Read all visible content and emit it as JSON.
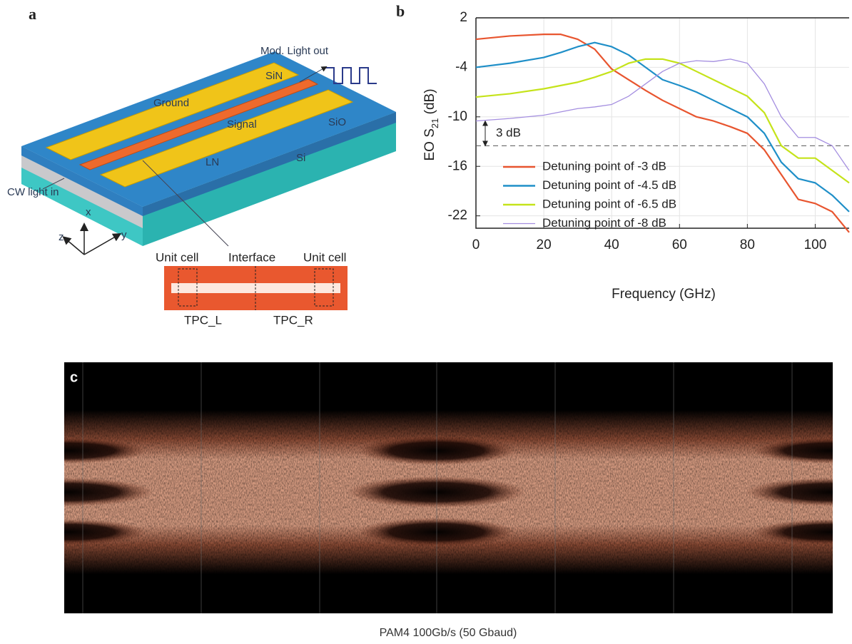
{
  "panel_a": {
    "label": "a",
    "mod_light_out": "Mod. Light out",
    "sin": "SiN",
    "ground": "Ground",
    "signal": "Signal",
    "sio": "SiO",
    "ln": "LN",
    "si": "Si",
    "cw_light_in": "CW light in",
    "axes": [
      "z",
      "x",
      "y"
    ],
    "inset": {
      "unit_cell_left": "Unit cell",
      "interface": "Interface",
      "unit_cell_right": "Unit cell",
      "tpc_l": "TPC_L",
      "tpc_r": "TPC_R"
    }
  },
  "chart_data": {
    "type": "line",
    "panel_label": "b",
    "xlabel": "Frequency (GHz)",
    "ylabel": {
      "main": "EO S",
      "sub": "21",
      "unit": " (dB)"
    },
    "x": [
      0,
      10,
      20,
      25,
      30,
      35,
      40,
      45,
      50,
      55,
      60,
      65,
      70,
      75,
      80,
      85,
      90,
      95,
      100,
      105,
      110
    ],
    "series": [
      {
        "name": "Detuning point of -3 dB",
        "color": "#e8552f",
        "values": [
          -0.6,
          -0.2,
          0,
          0,
          -0.6,
          -1.8,
          -4.2,
          -5.5,
          -6.8,
          -8,
          -9,
          -10,
          -10.5,
          -11.2,
          -12,
          -14,
          -17,
          -20,
          -20.5,
          -21.5,
          -24
        ]
      },
      {
        "name": "Detuning point of -4.5 dB",
        "color": "#1f8fc8",
        "values": [
          -4,
          -3.5,
          -2.8,
          -2.2,
          -1.5,
          -1,
          -1.5,
          -2.5,
          -4,
          -5.5,
          -6.2,
          -7,
          -8,
          -9,
          -10,
          -12,
          -15.5,
          -17.5,
          -18,
          -19.5,
          -21.5
        ]
      },
      {
        "name": "Detuning point of -6.5 dB",
        "color": "#c5e31a",
        "values": [
          -7.6,
          -7.2,
          -6.6,
          -6.2,
          -5.8,
          -5.2,
          -4.5,
          -3.5,
          -3,
          -3,
          -3.5,
          -4.5,
          -5.5,
          -6.5,
          -7.5,
          -9.5,
          -13.5,
          -15,
          -15,
          -16.5,
          -18
        ]
      },
      {
        "name": "Detuning point of -8 dB",
        "color": "#a48ee0",
        "values": [
          -10.5,
          -10.2,
          -9.8,
          -9.4,
          -9,
          -8.8,
          -8.5,
          -7.5,
          -6,
          -4.5,
          -3.5,
          -3.2,
          -3.3,
          -3,
          -3.5,
          -6,
          -10,
          -12.5,
          -12.5,
          -13.5,
          -16.5
        ]
      }
    ],
    "xlim": [
      0,
      110
    ],
    "ylim": [
      -23.5,
      2
    ],
    "xticks": [
      0,
      20,
      40,
      60,
      80,
      100
    ],
    "yticks": [
      2,
      -4,
      -10,
      -16,
      -22
    ],
    "grid": true,
    "annotation": {
      "text": "3 dB",
      "level": -13.5,
      "arrow": [
        -10.5,
        -13.5
      ]
    }
  },
  "panel_c": {
    "label": "c",
    "caption": "PAM4  100Gb/s (50 Gbaud)"
  }
}
